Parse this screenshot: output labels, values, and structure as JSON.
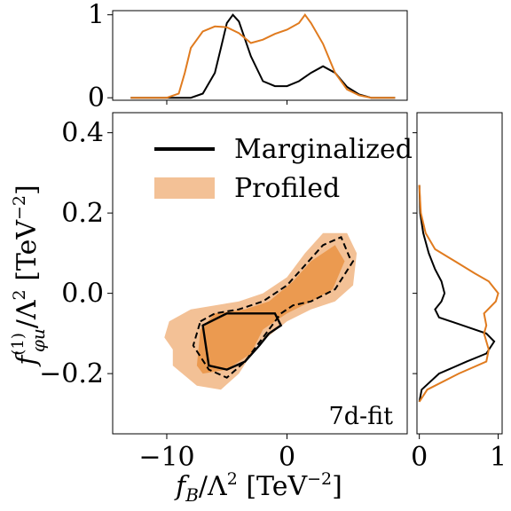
{
  "chart_data": {
    "type": "contour",
    "colors": {
      "marginalized": "#000000",
      "profiled_line": "#e07b1f",
      "profiled_fill_outer": "#f3c196",
      "profiled_fill_inner": "#eb9a50"
    },
    "legend": {
      "placement": "upper-left",
      "entries": [
        {
          "label": "Marginalized",
          "style": "line",
          "color": "#000000"
        },
        {
          "label": "Profiled",
          "style": "patch",
          "color": "#f3c196"
        }
      ]
    },
    "annotation": "7d-fit",
    "main": {
      "xlabel": "f_B/Λ^2 [TeV^-2]",
      "ylabel": "f^(1)_φu/Λ^2 [TeV^-2]",
      "xlim": [
        -14.5,
        10.0
      ],
      "ylim": [
        -0.35,
        0.45
      ],
      "xticks": [
        -10,
        0
      ],
      "xtick_labels": [
        "−10",
        "0"
      ],
      "yticks": [
        -0.2,
        0.0,
        0.2,
        0.4
      ],
      "ytick_labels": [
        "−0.2",
        "0.0",
        "0.2",
        "0.4"
      ],
      "profiled_outer_region": [
        [
          -9.5,
          -0.14
        ],
        [
          -10.2,
          -0.11
        ],
        [
          -9.8,
          -0.07
        ],
        [
          -8,
          -0.04
        ],
        [
          -6,
          -0.03
        ],
        [
          -4,
          -0.02
        ],
        [
          -2,
          0
        ],
        [
          0,
          0.04
        ],
        [
          1.5,
          0.1
        ],
        [
          3,
          0.15
        ],
        [
          5,
          0.15
        ],
        [
          5.8,
          0.1
        ],
        [
          5.5,
          0.02
        ],
        [
          4,
          -0.02
        ],
        [
          2,
          -0.04
        ],
        [
          0,
          -0.07
        ],
        [
          -2.5,
          -0.13
        ],
        [
          -4,
          -0.2
        ],
        [
          -5.5,
          -0.24
        ],
        [
          -7.5,
          -0.23
        ],
        [
          -9.5,
          -0.18
        ]
      ],
      "profiled_inner_region": [
        [
          -7.5,
          -0.18
        ],
        [
          -7.2,
          -0.09
        ],
        [
          -6,
          -0.05
        ],
        [
          -3.5,
          -0.04
        ],
        [
          -1.5,
          -0.02
        ],
        [
          0.5,
          0.03
        ],
        [
          2,
          0.08
        ],
        [
          4,
          0.12
        ],
        [
          4.8,
          0.08
        ],
        [
          3.8,
          0.01
        ],
        [
          2,
          -0.02
        ],
        [
          0,
          -0.05
        ],
        [
          -2,
          -0.09
        ],
        [
          -3,
          -0.15
        ],
        [
          -5,
          -0.19
        ],
        [
          -7,
          -0.2
        ]
      ],
      "marginalized_68_contour": [
        [
          -7,
          -0.08
        ],
        [
          -5,
          -0.05
        ],
        [
          -1,
          -0.05
        ],
        [
          -0.5,
          -0.08
        ],
        [
          -1.5,
          -0.1
        ],
        [
          -2.3,
          -0.13
        ],
        [
          -3.5,
          -0.17
        ],
        [
          -5,
          -0.19
        ],
        [
          -6.5,
          -0.18
        ],
        [
          -6.8,
          -0.12
        ]
      ],
      "marginalized_95_contour": [
        [
          -7.2,
          -0.07
        ],
        [
          -6,
          -0.05
        ],
        [
          -4,
          -0.04
        ],
        [
          -2,
          -0.02
        ],
        [
          0,
          0.02
        ],
        [
          1.5,
          0.07
        ],
        [
          3,
          0.12
        ],
        [
          4.5,
          0.14
        ],
        [
          5.2,
          0.09
        ],
        [
          5.5,
          0.08
        ],
        [
          4,
          0.01
        ],
        [
          2,
          -0.02
        ],
        [
          0.5,
          -0.03
        ],
        [
          -0.5,
          -0.05
        ],
        [
          -1.5,
          -0.09
        ],
        [
          -3.5,
          -0.17
        ],
        [
          -5,
          -0.21
        ],
        [
          -6.5,
          -0.19
        ],
        [
          -7.8,
          -0.13
        ]
      ]
    },
    "top_marginal": {
      "xlim": [
        -14.5,
        10.0
      ],
      "ylim": [
        -0.03,
        1.05
      ],
      "yticks": [
        0,
        1
      ],
      "ytick_labels": [
        "0",
        "1"
      ],
      "marginalized": {
        "x": [
          -13,
          -10,
          -8,
          -7,
          -6,
          -5.5,
          -5,
          -4.5,
          -4,
          -3,
          -2,
          -1,
          0,
          1,
          2,
          3,
          4,
          5,
          6,
          7,
          9
        ],
        "y": [
          0,
          0,
          0,
          0.05,
          0.3,
          0.6,
          0.9,
          1.0,
          0.92,
          0.5,
          0.2,
          0.14,
          0.14,
          0.2,
          0.3,
          0.38,
          0.3,
          0.13,
          0.04,
          0,
          0
        ]
      },
      "profiled": {
        "x": [
          -13,
          -10,
          -9,
          -8.5,
          -8,
          -7,
          -6,
          -5,
          -4,
          -3,
          -2,
          -1,
          0,
          1,
          1.5,
          2,
          3,
          4,
          5,
          6,
          7,
          9
        ],
        "y": [
          0,
          0,
          0.05,
          0.3,
          0.6,
          0.8,
          0.86,
          0.85,
          0.78,
          0.66,
          0.7,
          0.77,
          0.82,
          0.9,
          1.0,
          0.9,
          0.65,
          0.3,
          0.1,
          0.03,
          0,
          0
        ]
      }
    },
    "right_marginal": {
      "xlim": [
        -0.03,
        1.05
      ],
      "ylim": [
        -0.35,
        0.45
      ],
      "xticks": [
        0,
        1
      ],
      "xtick_labels": [
        "0",
        "1"
      ],
      "marginalized": {
        "y": [
          -0.27,
          -0.24,
          -0.2,
          -0.17,
          -0.15,
          -0.12,
          -0.1,
          -0.08,
          -0.06,
          -0.04,
          -0.02,
          0,
          0.03,
          0.06,
          0.1,
          0.15,
          0.2,
          0.27
        ],
        "x": [
          0,
          0.03,
          0.25,
          0.6,
          0.85,
          0.95,
          0.85,
          0.55,
          0.25,
          0.2,
          0.28,
          0.32,
          0.28,
          0.2,
          0.12,
          0.05,
          0.01,
          0
        ]
      },
      "profiled": {
        "y": [
          -0.27,
          -0.24,
          -0.2,
          -0.17,
          -0.14,
          -0.1,
          -0.08,
          -0.05,
          -0.02,
          0,
          0.03,
          0.05,
          0.08,
          0.11,
          0.15,
          0.2,
          0.23,
          0.27
        ],
        "x": [
          0,
          0.1,
          0.5,
          0.85,
          0.88,
          0.82,
          0.85,
          0.82,
          0.97,
          1.0,
          0.88,
          0.7,
          0.45,
          0.2,
          0.08,
          0.02,
          0.01,
          0
        ]
      }
    }
  }
}
